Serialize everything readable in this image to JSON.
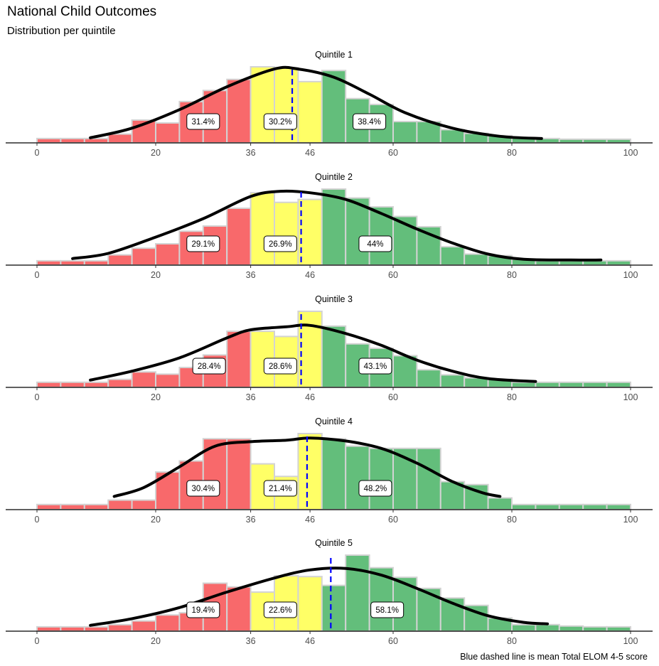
{
  "title": "National Child Outcomes",
  "subtitle": "Distribution per quintile",
  "caption": "Blue dashed line is mean Total ELOM 4-5 score",
  "colors": {
    "low": "#F8696B",
    "mid": "#FFFF66",
    "high": "#63BE7B",
    "mean_line": "#0000FF",
    "density": "#000000",
    "bar_outline": "#D3D3D3"
  },
  "chart_data": {
    "type": "bar",
    "x_ticks": [
      0,
      20,
      36,
      46,
      60,
      80,
      100
    ],
    "xlim": [
      0,
      100
    ],
    "bin_width": 4,
    "thresholds": [
      36,
      46
    ],
    "panels": [
      {
        "label": "Quintile 1",
        "mean": 43,
        "bins": [
          [
            0,
            0.03
          ],
          [
            4,
            0.03
          ],
          [
            8,
            0.03
          ],
          [
            12,
            0.09
          ],
          [
            16,
            0.28
          ],
          [
            20,
            0.24
          ],
          [
            24,
            0.53
          ],
          [
            28,
            0.68
          ],
          [
            32,
            0.83
          ],
          [
            36,
            1.0
          ],
          [
            40,
            0.99
          ],
          [
            44,
            0.8
          ],
          [
            48,
            0.95
          ],
          [
            52,
            0.57
          ],
          [
            56,
            0.49
          ],
          [
            60,
            0.26
          ],
          [
            64,
            0.26
          ],
          [
            68,
            0.15
          ],
          [
            72,
            0.1
          ],
          [
            76,
            0.07
          ],
          [
            80,
            0.04
          ],
          [
            84,
            0.03
          ],
          [
            88,
            0.02
          ],
          [
            92,
            0.02
          ],
          [
            96,
            0.02
          ]
        ],
        "density": [
          [
            9,
            0.04
          ],
          [
            16,
            0.17
          ],
          [
            24,
            0.42
          ],
          [
            32,
            0.73
          ],
          [
            40,
            0.97
          ],
          [
            44,
            0.97
          ],
          [
            50,
            0.86
          ],
          [
            56,
            0.63
          ],
          [
            62,
            0.38
          ],
          [
            70,
            0.17
          ],
          [
            78,
            0.06
          ],
          [
            85,
            0.03
          ]
        ],
        "labels": [
          {
            "x": 28,
            "text": "31.4%"
          },
          {
            "x": 41,
            "text": "30.2%"
          },
          {
            "x": 56,
            "text": "38.4%"
          }
        ]
      },
      {
        "label": "Quintile 2",
        "mean": 44.5,
        "bins": [
          [
            0,
            0.03
          ],
          [
            4,
            0.03
          ],
          [
            8,
            0.03
          ],
          [
            12,
            0.11
          ],
          [
            16,
            0.2
          ],
          [
            20,
            0.26
          ],
          [
            24,
            0.43
          ],
          [
            28,
            0.5
          ],
          [
            32,
            0.74
          ],
          [
            36,
            0.95
          ],
          [
            40,
            0.82
          ],
          [
            44,
            0.86
          ],
          [
            48,
            1.0
          ],
          [
            52,
            0.88
          ],
          [
            56,
            0.76
          ],
          [
            60,
            0.63
          ],
          [
            64,
            0.49
          ],
          [
            68,
            0.22
          ],
          [
            72,
            0.12
          ],
          [
            76,
            0.1
          ],
          [
            80,
            0.05
          ],
          [
            84,
            0.03
          ],
          [
            88,
            0.03
          ],
          [
            92,
            0.03
          ],
          [
            96,
            0.03
          ]
        ],
        "density": [
          [
            6,
            0.06
          ],
          [
            12,
            0.13
          ],
          [
            20,
            0.35
          ],
          [
            28,
            0.6
          ],
          [
            36,
            0.9
          ],
          [
            41,
            0.97
          ],
          [
            46,
            0.95
          ],
          [
            52,
            0.86
          ],
          [
            58,
            0.67
          ],
          [
            64,
            0.46
          ],
          [
            70,
            0.27
          ],
          [
            76,
            0.12
          ],
          [
            82,
            0.05
          ],
          [
            90,
            0.04
          ],
          [
            95,
            0.04
          ]
        ],
        "labels": [
          {
            "x": 28,
            "text": "29.1%"
          },
          {
            "x": 41,
            "text": "26.9%"
          },
          {
            "x": 57,
            "text": "44%"
          }
        ]
      },
      {
        "label": "Quintile 3",
        "mean": 44.5,
        "bins": [
          [
            0,
            0.04
          ],
          [
            4,
            0.04
          ],
          [
            8,
            0.04
          ],
          [
            12,
            0.08
          ],
          [
            16,
            0.18
          ],
          [
            20,
            0.15
          ],
          [
            24,
            0.24
          ],
          [
            28,
            0.41
          ],
          [
            32,
            0.73
          ],
          [
            36,
            0.73
          ],
          [
            40,
            0.66
          ],
          [
            44,
            1.0
          ],
          [
            48,
            0.8
          ],
          [
            52,
            0.56
          ],
          [
            56,
            0.5
          ],
          [
            60,
            0.4
          ],
          [
            64,
            0.21
          ],
          [
            68,
            0.14
          ],
          [
            72,
            0.1
          ],
          [
            76,
            0.08
          ],
          [
            80,
            0.04
          ],
          [
            84,
            0.04
          ],
          [
            88,
            0.04
          ],
          [
            92,
            0.04
          ],
          [
            96,
            0.04
          ]
        ],
        "density": [
          [
            9,
            0.07
          ],
          [
            16,
            0.19
          ],
          [
            24,
            0.37
          ],
          [
            32,
            0.64
          ],
          [
            36,
            0.75
          ],
          [
            42,
            0.79
          ],
          [
            46,
            0.81
          ],
          [
            52,
            0.7
          ],
          [
            58,
            0.54
          ],
          [
            64,
            0.34
          ],
          [
            70,
            0.19
          ],
          [
            76,
            0.09
          ],
          [
            84,
            0.05
          ]
        ],
        "labels": [
          {
            "x": 29,
            "text": "28.4%"
          },
          {
            "x": 41,
            "text": "28.6%"
          },
          {
            "x": 57,
            "text": "43.1%"
          }
        ]
      },
      {
        "label": "Quintile 4",
        "mean": 45.5,
        "bins": [
          [
            0,
            0.04
          ],
          [
            4,
            0.04
          ],
          [
            8,
            0.04
          ],
          [
            12,
            0.1
          ],
          [
            16,
            0.1
          ],
          [
            20,
            0.48
          ],
          [
            24,
            0.63
          ],
          [
            28,
            0.93
          ],
          [
            32,
            0.93
          ],
          [
            36,
            0.59
          ],
          [
            40,
            0.42
          ],
          [
            44,
            1.0
          ],
          [
            48,
            0.93
          ],
          [
            52,
            0.83
          ],
          [
            56,
            0.8
          ],
          [
            60,
            0.8
          ],
          [
            64,
            0.8
          ],
          [
            68,
            0.35
          ],
          [
            72,
            0.31
          ],
          [
            76,
            0.13
          ],
          [
            80,
            0.04
          ],
          [
            84,
            0.04
          ],
          [
            88,
            0.04
          ],
          [
            92,
            0.04
          ],
          [
            96,
            0.04
          ]
        ],
        "density": [
          [
            13,
            0.15
          ],
          [
            18,
            0.27
          ],
          [
            24,
            0.55
          ],
          [
            30,
            0.83
          ],
          [
            36,
            0.89
          ],
          [
            42,
            0.91
          ],
          [
            46,
            0.94
          ],
          [
            52,
            0.9
          ],
          [
            58,
            0.8
          ],
          [
            64,
            0.6
          ],
          [
            70,
            0.35
          ],
          [
            75,
            0.2
          ],
          [
            78,
            0.15
          ]
        ],
        "labels": [
          {
            "x": 28,
            "text": "30.4%"
          },
          {
            "x": 41,
            "text": "21.4%"
          },
          {
            "x": 57,
            "text": "48.2%"
          }
        ]
      },
      {
        "label": "Quintile 5",
        "mean": 49.5,
        "bins": [
          [
            0,
            0.03
          ],
          [
            4,
            0.03
          ],
          [
            8,
            0.03
          ],
          [
            12,
            0.06
          ],
          [
            16,
            0.11
          ],
          [
            20,
            0.19
          ],
          [
            24,
            0.22
          ],
          [
            28,
            0.62
          ],
          [
            32,
            0.57
          ],
          [
            36,
            0.5
          ],
          [
            40,
            0.72
          ],
          [
            44,
            0.71
          ],
          [
            48,
            0.59
          ],
          [
            52,
            1.0
          ],
          [
            56,
            0.83
          ],
          [
            60,
            0.7
          ],
          [
            64,
            0.55
          ],
          [
            68,
            0.42
          ],
          [
            72,
            0.32
          ],
          [
            76,
            0.15
          ],
          [
            80,
            0.06
          ],
          [
            84,
            0.06
          ],
          [
            88,
            0.04
          ],
          [
            92,
            0.03
          ],
          [
            96,
            0.03
          ]
        ],
        "density": [
          [
            9,
            0.05
          ],
          [
            16,
            0.14
          ],
          [
            24,
            0.29
          ],
          [
            32,
            0.5
          ],
          [
            40,
            0.69
          ],
          [
            46,
            0.8
          ],
          [
            52,
            0.82
          ],
          [
            58,
            0.73
          ],
          [
            64,
            0.55
          ],
          [
            70,
            0.35
          ],
          [
            76,
            0.18
          ],
          [
            82,
            0.09
          ],
          [
            86,
            0.07
          ]
        ],
        "labels": [
          {
            "x": 28,
            "text": "19.4%"
          },
          {
            "x": 41,
            "text": "22.6%"
          },
          {
            "x": 59,
            "text": "58.1%"
          }
        ]
      }
    ]
  }
}
